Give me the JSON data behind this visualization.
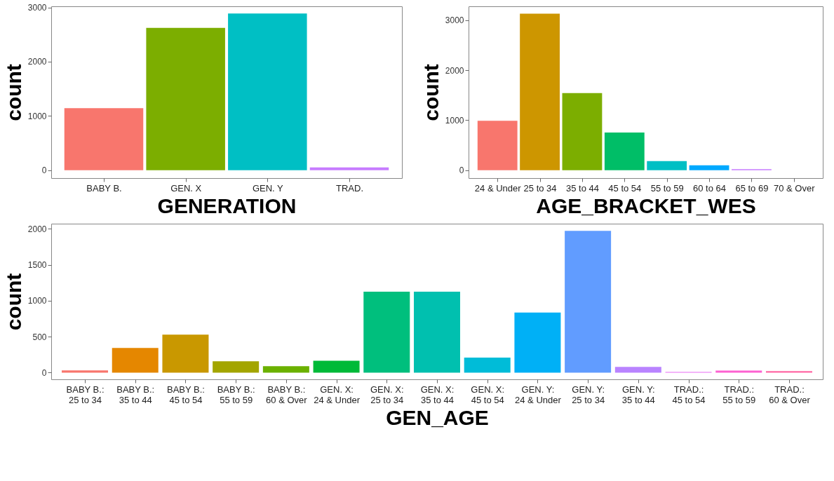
{
  "chart_data": [
    {
      "type": "bar",
      "xlabel": "GENERATION",
      "ylabel": "count",
      "categories": [
        "BABY B.",
        "GEN. X",
        "GEN. Y",
        "TRAD."
      ],
      "values": [
        1145,
        2622,
        2886,
        53
      ],
      "colors": [
        "#F8766D",
        "#7CAE00",
        "#00BFC4",
        "#C77CFF"
      ],
      "ylim": [
        -145,
        3020
      ],
      "yticks": [
        0,
        1000,
        2000,
        3000
      ],
      "grid": false,
      "legend": false
    },
    {
      "type": "bar",
      "xlabel": "AGE_BRACKET_WES",
      "ylabel": "count",
      "categories": [
        "24 & Under",
        "25 to 34",
        "35 to 44",
        "45 to 54",
        "55 to 59",
        "60 to 64",
        "65 to 69",
        "70 & Over"
      ],
      "values": [
        987,
        3131,
        1544,
        753,
        183,
        98,
        19,
        null
      ],
      "colors": [
        "#F8766D",
        "#CD9600",
        "#7CAE00",
        "#00BE67",
        "#00BFC4",
        "#00A9FF",
        "#C77CFF",
        "#FF61CC"
      ],
      "ylim": [
        -159,
        3280
      ],
      "yticks": [
        0,
        1000,
        2000,
        3000
      ],
      "grid": false,
      "legend": false
    },
    {
      "type": "bar",
      "xlabel": "GEN_AGE",
      "ylabel": "count",
      "categories": [
        "BABY B.:\n25 to 34",
        "BABY B.:\n35 to 44",
        "BABY B.:\n45 to 54",
        "BABY B.:\n55 to 59",
        "BABY B.:\n60 & Over",
        "GEN. X:\n24 & Under",
        "GEN. X:\n25 to 34",
        "GEN. X:\n35 to 44",
        "GEN. X:\n45 to 54",
        "GEN. Y:\n24 & Under",
        "GEN. Y:\n25 to 34",
        "GEN. Y:\n35 to 44",
        "TRAD.:\n45 to 54",
        "TRAD.:\n55 to 59",
        "TRAD.:\n60 & Over"
      ],
      "values": [
        32,
        342,
        527,
        157,
        89,
        166,
        1125,
        1125,
        208,
        834,
        1971,
        80,
        10,
        29,
        22
      ],
      "colors": [
        "#F8766D",
        "#E58700",
        "#C99800",
        "#A3A500",
        "#6BB100",
        "#00BA38",
        "#00BF7D",
        "#00C0AF",
        "#00BCD8",
        "#00B0F6",
        "#619CFF",
        "#B983FF",
        "#E76BF3",
        "#FD61D1",
        "#FF67A4"
      ],
      "ylim": [
        -93,
        2070
      ],
      "yticks": [
        0,
        500,
        1000,
        1500,
        2000
      ],
      "grid": false,
      "legend": false
    }
  ]
}
